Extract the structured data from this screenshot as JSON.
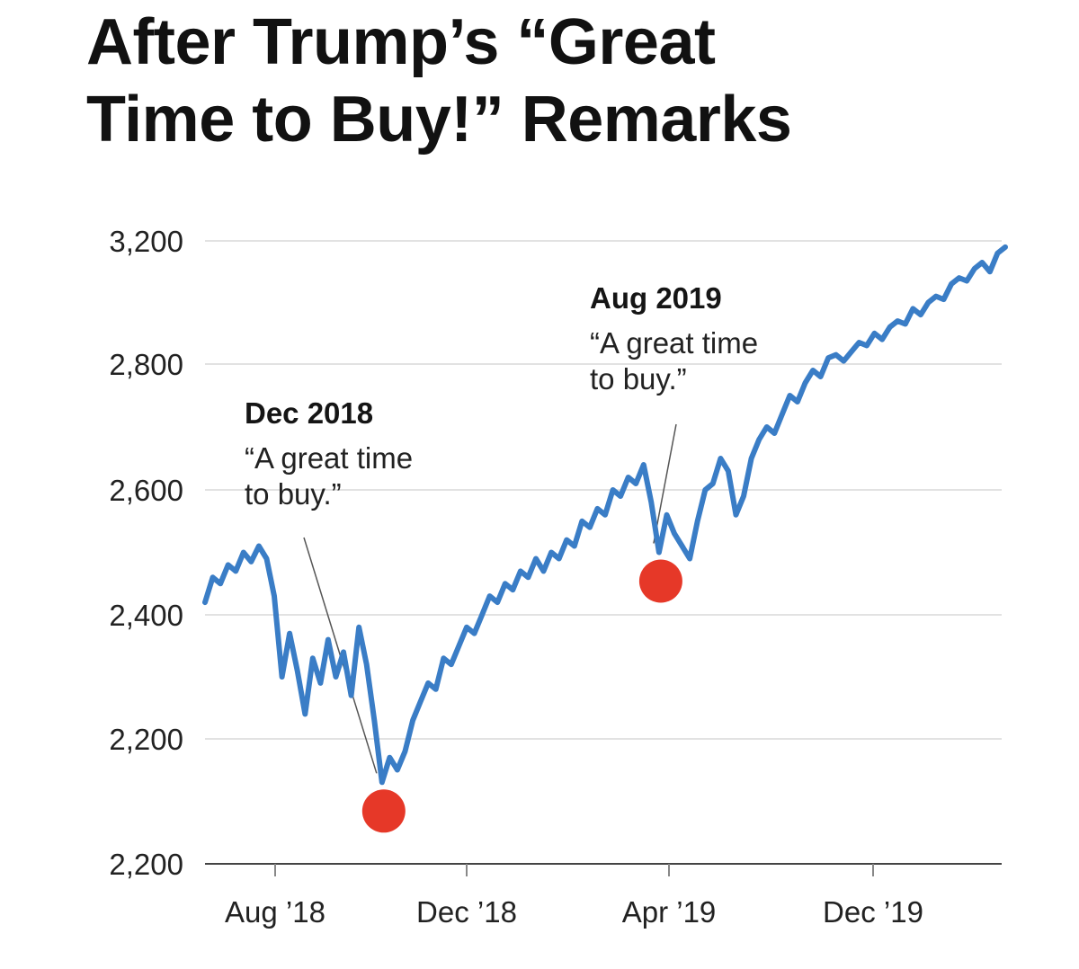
{
  "chart_data": {
    "type": "line",
    "title": [
      "After Trump’s “Great",
      "Time to Buy!” Remarks"
    ],
    "xlabel": "",
    "ylabel": "",
    "y_tick_labels": [
      "3,200",
      "2,800",
      "2,600",
      "2,400",
      "2,200",
      "2,200"
    ],
    "x_tick_labels": [
      "Aug ’18",
      "Dec ’18",
      "Apr ’19",
      "Dec ’19"
    ],
    "grid": "horizontal",
    "legend": "none",
    "series": [
      {
        "color": "#3a7dc6",
        "values": [
          2420,
          2460,
          2450,
          2480,
          2470,
          2500,
          2485,
          2510,
          2490,
          2430,
          2300,
          2370,
          2310,
          2240,
          2330,
          2290,
          2360,
          2300,
          2340,
          2270,
          2380,
          2320,
          2230,
          2130,
          2170,
          2150,
          2180,
          2230,
          2260,
          2290,
          2280,
          2330,
          2320,
          2350,
          2380,
          2370,
          2400,
          2430,
          2420,
          2450,
          2440,
          2470,
          2460,
          2490,
          2470,
          2500,
          2490,
          2520,
          2510,
          2550,
          2540,
          2570,
          2560,
          2600,
          2590,
          2620,
          2610,
          2640,
          2580,
          2500,
          2560,
          2530,
          2510,
          2490,
          2550,
          2600,
          2610,
          2650,
          2630,
          2560,
          2590,
          2650,
          2680,
          2700,
          2690,
          2720,
          2750,
          2740,
          2770,
          2790,
          2780,
          2820,
          2830,
          2810,
          2840,
          2870,
          2860,
          2900,
          2880,
          2920,
          2940,
          2930,
          2980,
          2960,
          3000,
          3020,
          3010,
          3060,
          3080,
          3070,
          3110,
          3130,
          3100,
          3160,
          3180
        ]
      }
    ],
    "highlights": [
      {
        "index": 23,
        "color": "#e63828"
      },
      {
        "index": 59,
        "color": "#e63828"
      }
    ],
    "annotations": [
      {
        "head": "Dec 2018",
        "text": [
          "“A great time",
          "to buy.”"
        ],
        "point": 23
      },
      {
        "head": "Aug 2019",
        "text": [
          "“A great time",
          "to buy.”"
        ],
        "point": 59
      }
    ]
  }
}
